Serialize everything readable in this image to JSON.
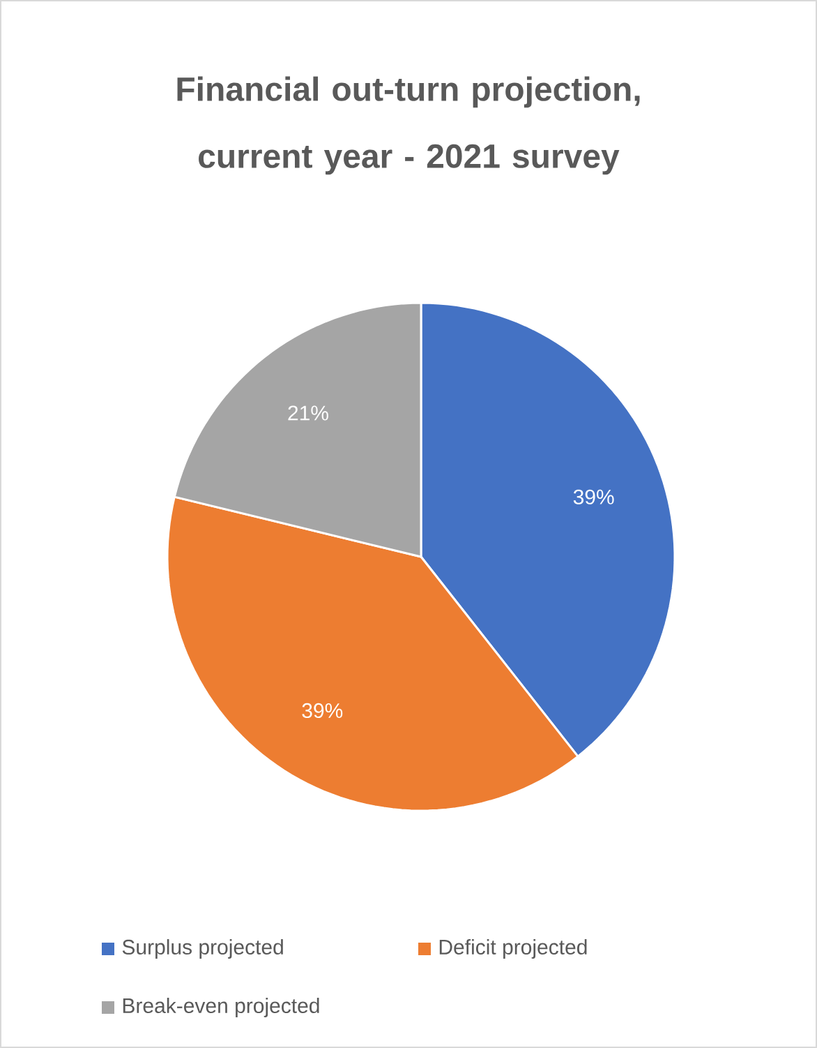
{
  "chart_data": {
    "type": "pie",
    "title": "Financial out-turn projection, current year - 2021 survey",
    "categories": [
      "Surplus projected",
      "Deficit projected",
      "Break-even projected"
    ],
    "values": [
      39,
      39,
      21
    ],
    "colors": [
      "#4472c4",
      "#ed7d31",
      "#a5a5a5"
    ],
    "value_labels": [
      "39%",
      "39%",
      "21%"
    ],
    "legend": "bottom"
  }
}
